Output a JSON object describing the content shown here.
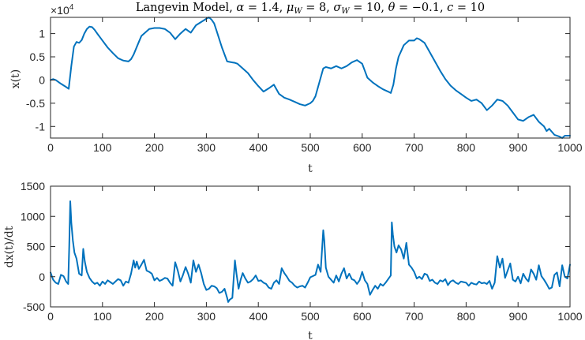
{
  "figure_title": "Langevin Model, α = 1.4, μ_W = 8, σ_W = 10, θ = −0.1, c = 10",
  "title_parts": {
    "prefix": "Langevin Model, ",
    "alpha_sym": "α",
    "alpha_val": " = 1.4, ",
    "mu_sym": "μ",
    "mu_sub": "W",
    "mu_val": " = 8, ",
    "sigma_sym": "σ",
    "sigma_sub": "W",
    "sigma_val": " = 10, ",
    "theta_sym": "θ",
    "theta_val": " = −0.1, ",
    "c_sym": "c",
    "c_val": " = 10"
  },
  "line_color": "#0072BD",
  "chart_data": [
    {
      "type": "line",
      "xlabel": "t",
      "ylabel": "x(t)",
      "exponent_label": {
        "base": "×10",
        "power": "4"
      },
      "xlim": [
        0,
        1000
      ],
      "ylim": [
        -1.25,
        1.35
      ],
      "grid": false,
      "xticks": [
        0,
        100,
        200,
        300,
        400,
        500,
        600,
        700,
        800,
        900,
        1000
      ],
      "xtick_labels": [
        "0",
        "100",
        "200",
        "300",
        "400",
        "500",
        "600",
        "700",
        "800",
        "900",
        "1000"
      ],
      "yticks": [
        -1,
        -0.5,
        0,
        0.5,
        1
      ],
      "ytick_labels": [
        "-1",
        "-0.5",
        "0",
        "0.5",
        "1"
      ],
      "series": [
        {
          "x": [
            0,
            5,
            10,
            20,
            30,
            35,
            40,
            45,
            50,
            55,
            60,
            65,
            70,
            75,
            80,
            85,
            90,
            100,
            110,
            120,
            130,
            140,
            150,
            155,
            160,
            170,
            175,
            180,
            190,
            200,
            210,
            220,
            230,
            240,
            250,
            255,
            260,
            270,
            280,
            290,
            300,
            305,
            310,
            315,
            320,
            330,
            340,
            350,
            355,
            360,
            370,
            380,
            390,
            400,
            410,
            420,
            430,
            440,
            450,
            460,
            470,
            480,
            490,
            500,
            505,
            510,
            520,
            525,
            530,
            540,
            550,
            560,
            570,
            580,
            590,
            600,
            605,
            610,
            620,
            630,
            640,
            650,
            655,
            660,
            665,
            670,
            680,
            690,
            700,
            705,
            710,
            720,
            730,
            740,
            750,
            760,
            770,
            780,
            790,
            800,
            810,
            820,
            830,
            840,
            850,
            860,
            870,
            880,
            890,
            900,
            910,
            920,
            930,
            940,
            950,
            955,
            960,
            970,
            980,
            985,
            990,
            1000
          ],
          "y": [
            0.0,
            0.02,
            0.0,
            -0.08,
            -0.15,
            -0.19,
            0.3,
            0.72,
            0.82,
            0.8,
            0.86,
            1.0,
            1.1,
            1.15,
            1.14,
            1.08,
            1.0,
            0.85,
            0.7,
            0.58,
            0.47,
            0.42,
            0.4,
            0.45,
            0.55,
            0.82,
            0.95,
            1.0,
            1.1,
            1.12,
            1.12,
            1.1,
            1.02,
            0.88,
            1.0,
            1.05,
            1.1,
            1.02,
            1.18,
            1.25,
            1.32,
            1.35,
            1.3,
            1.22,
            1.05,
            0.7,
            0.4,
            0.38,
            0.37,
            0.35,
            0.25,
            0.15,
            0.0,
            -0.13,
            -0.25,
            -0.18,
            -0.1,
            -0.3,
            -0.38,
            -0.42,
            -0.47,
            -0.52,
            -0.55,
            -0.5,
            -0.45,
            -0.35,
            0.05,
            0.25,
            0.28,
            0.25,
            0.3,
            0.25,
            0.3,
            0.38,
            0.43,
            0.35,
            0.2,
            0.05,
            -0.05,
            -0.13,
            -0.2,
            -0.25,
            -0.28,
            -0.1,
            0.25,
            0.5,
            0.75,
            0.85,
            0.85,
            0.9,
            0.88,
            0.8,
            0.6,
            0.4,
            0.2,
            0.02,
            -0.12,
            -0.22,
            -0.3,
            -0.38,
            -0.45,
            -0.42,
            -0.5,
            -0.65,
            -0.55,
            -0.42,
            -0.45,
            -0.55,
            -0.7,
            -0.85,
            -0.88,
            -0.8,
            -0.75,
            -0.9,
            -1.0,
            -1.1,
            -1.05,
            -1.18,
            -1.22,
            -1.25,
            -1.2,
            -1.2
          ]
        }
      ]
    },
    {
      "type": "line",
      "xlabel": "t",
      "ylabel": "dx(t)/dt",
      "xlim": [
        0,
        1000
      ],
      "ylim": [
        -500,
        1500
      ],
      "grid": false,
      "xticks": [
        0,
        100,
        200,
        300,
        400,
        500,
        600,
        700,
        800,
        900,
        1000
      ],
      "xtick_labels": [
        "0",
        "100",
        "200",
        "300",
        "400",
        "500",
        "600",
        "700",
        "800",
        "900",
        "1000"
      ],
      "yticks": [
        -500,
        0,
        500,
        1000,
        1500
      ],
      "ytick_labels": [
        "-500",
        "0",
        "500",
        "1000",
        "1500"
      ],
      "series": [
        {
          "x": [
            0,
            5,
            10,
            15,
            20,
            25,
            30,
            34,
            36,
            38,
            40,
            43,
            46,
            50,
            55,
            60,
            63,
            66,
            70,
            75,
            80,
            85,
            90,
            95,
            100,
            105,
            110,
            115,
            120,
            125,
            130,
            135,
            140,
            145,
            150,
            155,
            160,
            163,
            166,
            170,
            175,
            180,
            185,
            190,
            195,
            200,
            205,
            210,
            215,
            220,
            225,
            230,
            235,
            240,
            245,
            250,
            255,
            260,
            265,
            270,
            275,
            280,
            285,
            290,
            295,
            300,
            305,
            310,
            315,
            320,
            325,
            330,
            335,
            340,
            342,
            345,
            350,
            355,
            358,
            362,
            366,
            370,
            375,
            380,
            385,
            390,
            395,
            400,
            405,
            410,
            415,
            420,
            425,
            430,
            435,
            440,
            445,
            450,
            455,
            460,
            465,
            470,
            475,
            480,
            485,
            490,
            495,
            500,
            505,
            510,
            515,
            520,
            525,
            527,
            530,
            535,
            540,
            545,
            550,
            555,
            560,
            565,
            570,
            575,
            580,
            585,
            590,
            595,
            600,
            605,
            610,
            615,
            620,
            625,
            630,
            635,
            640,
            645,
            650,
            655,
            657,
            659,
            662,
            666,
            670,
            675,
            680,
            685,
            690,
            695,
            700,
            705,
            710,
            715,
            720,
            725,
            730,
            735,
            740,
            745,
            750,
            755,
            760,
            765,
            770,
            775,
            780,
            785,
            790,
            795,
            800,
            805,
            810,
            815,
            820,
            825,
            830,
            835,
            840,
            845,
            850,
            855,
            860,
            865,
            870,
            875,
            880,
            885,
            890,
            895,
            900,
            905,
            910,
            915,
            920,
            925,
            930,
            935,
            940,
            945,
            950,
            955,
            960,
            965,
            970,
            975,
            980,
            985,
            990,
            995,
            1000
          ],
          "y": [
            70,
            -50,
            -100,
            -120,
            30,
            10,
            -80,
            -120,
            500,
            1250,
            900,
            600,
            400,
            300,
            50,
            20,
            460,
            250,
            80,
            -20,
            -80,
            -120,
            -100,
            -150,
            -80,
            -120,
            -60,
            -90,
            -120,
            -80,
            -40,
            -60,
            -150,
            -80,
            -100,
            50,
            270,
            150,
            250,
            130,
            200,
            280,
            100,
            80,
            50,
            -60,
            -20,
            -70,
            -50,
            -20,
            -30,
            -100,
            -150,
            240,
            100,
            -80,
            30,
            160,
            50,
            -100,
            270,
            80,
            200,
            60,
            -120,
            -220,
            -200,
            -150,
            -160,
            -190,
            -270,
            -250,
            -200,
            -350,
            -420,
            -380,
            -350,
            270,
            50,
            -200,
            -50,
            60,
            -30,
            -100,
            -80,
            -40,
            20,
            -70,
            -60,
            -100,
            -120,
            -180,
            -200,
            -100,
            -60,
            -120,
            140,
            60,
            0,
            -70,
            -100,
            -150,
            -180,
            -160,
            -150,
            -180,
            -100,
            -10,
            10,
            30,
            200,
            80,
            770,
            600,
            150,
            0,
            -50,
            -100,
            20,
            -80,
            50,
            140,
            -30,
            50,
            -40,
            -60,
            -120,
            -60,
            80,
            -60,
            -120,
            -300,
            -220,
            -150,
            -200,
            -120,
            -150,
            -100,
            -40,
            20,
            900,
            700,
            500,
            400,
            520,
            450,
            300,
            560,
            200,
            150,
            80,
            -30,
            0,
            -40,
            50,
            30,
            -70,
            -50,
            -100,
            -120,
            -60,
            -80,
            -40,
            -140,
            -80,
            -60,
            -100,
            -120,
            -80,
            -90,
            -100,
            -150,
            -100,
            -120,
            -130,
            -80,
            -110,
            -100,
            -120,
            -70,
            -200,
            -100,
            340,
            150,
            300,
            -20,
            100,
            220,
            -50,
            -80,
            0,
            -110,
            50,
            -30,
            -80,
            120,
            50,
            -50,
            190,
            10,
            -50,
            -120,
            -200,
            -180,
            30,
            70,
            -160,
            190,
            0,
            -30,
            200
          ]
        }
      ]
    }
  ]
}
